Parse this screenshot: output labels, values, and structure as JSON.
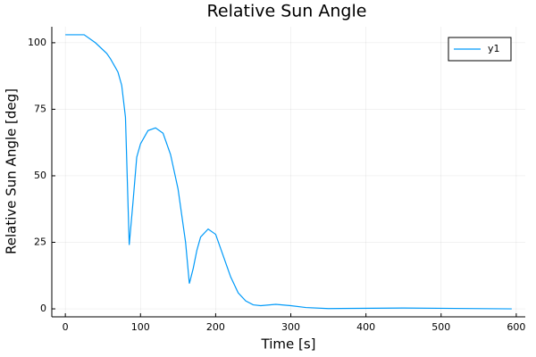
{
  "chart_data": {
    "type": "line",
    "title": "Relative Sun Angle",
    "x_label": "Time [s]",
    "y_label": "Relative Sun Angle [deg]",
    "x": [
      0,
      25,
      40,
      55,
      60,
      70,
      75,
      80,
      85,
      90,
      95,
      100,
      110,
      120,
      130,
      140,
      150,
      160,
      165,
      170,
      175,
      180,
      190,
      200,
      210,
      220,
      230,
      240,
      250,
      260,
      280,
      300,
      320,
      350,
      450,
      594
    ],
    "series": [
      {
        "name": "y1",
        "color": "#009af9",
        "values": [
          103,
          103,
          100,
          96,
          94,
          89,
          84,
          72,
          24,
          40,
          57,
          62,
          67,
          68,
          66,
          58,
          45,
          25,
          9.5,
          15,
          22,
          27,
          30,
          28,
          20,
          12,
          6,
          3,
          1.5,
          1.2,
          1.7,
          1.2,
          0.5,
          0.1,
          0.3,
          0
        ]
      }
    ],
    "xlim": [
      -18,
      612
    ],
    "ylim": [
      -3,
      106
    ],
    "xticks": [
      0,
      100,
      200,
      300,
      400,
      500,
      600
    ],
    "yticks": [
      0,
      25,
      50,
      75,
      100
    ],
    "grid": true,
    "legend_position": "top-right"
  }
}
